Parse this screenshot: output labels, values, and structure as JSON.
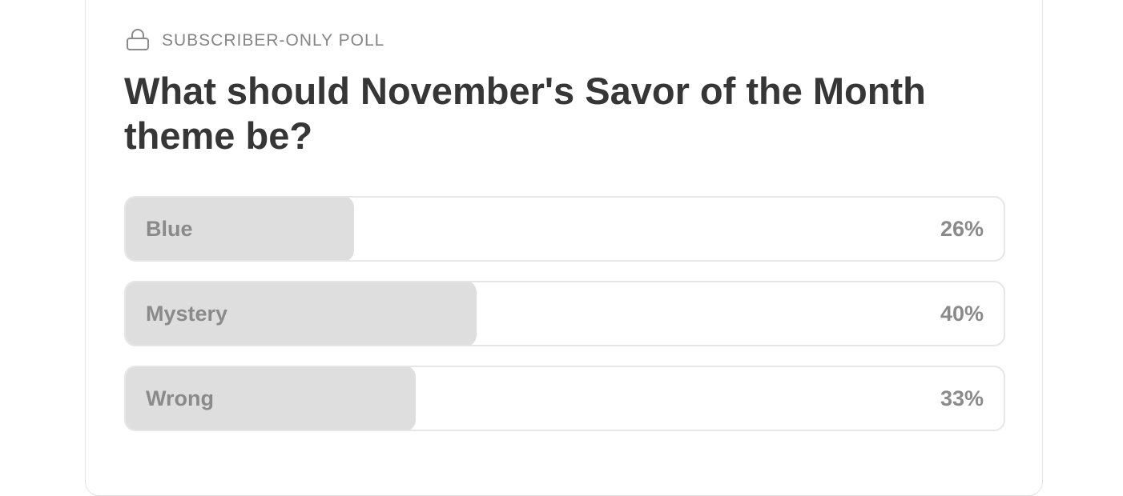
{
  "poll": {
    "kicker": "SUBSCRIBER-ONLY POLL",
    "question": "What should November's Savor of the Month theme be?",
    "options": [
      {
        "label": "Blue",
        "value": 26,
        "value_label": "26%"
      },
      {
        "label": "Mystery",
        "value": 40,
        "value_label": "40%"
      },
      {
        "label": "Wrong",
        "value": 33,
        "value_label": "33%"
      }
    ]
  }
}
